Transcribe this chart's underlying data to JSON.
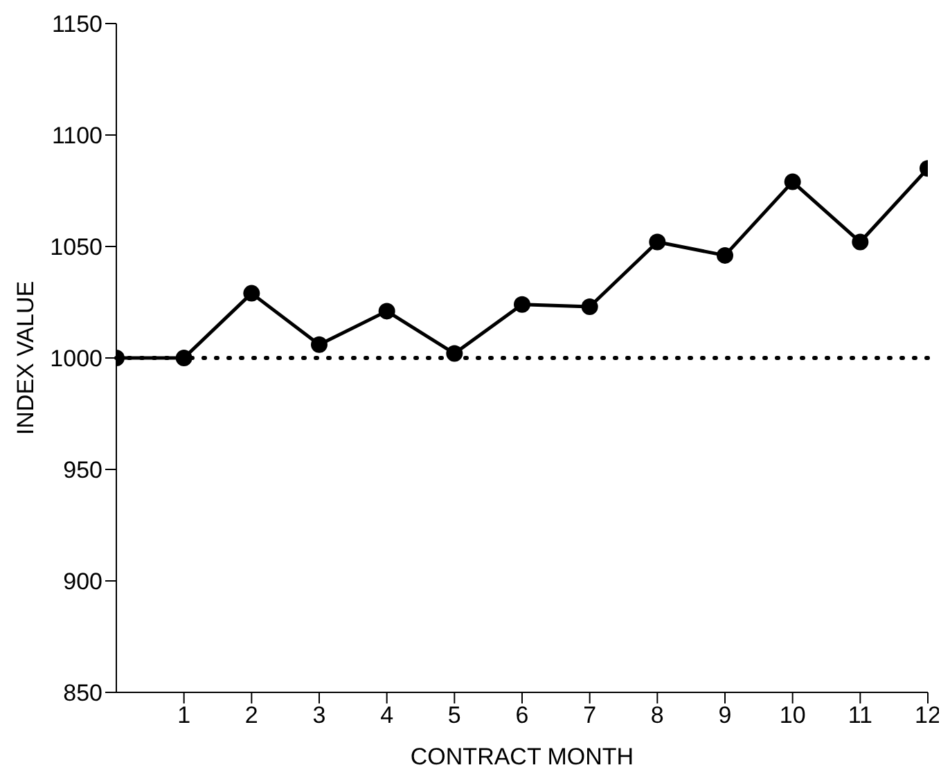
{
  "chart_data": {
    "type": "line",
    "xlabel": "CONTRACT MONTH",
    "ylabel": "INDEX VALUE",
    "x": [
      0,
      1,
      2,
      3,
      4,
      5,
      6,
      7,
      8,
      9,
      10,
      11,
      12
    ],
    "series": [
      {
        "color": "#000000",
        "values": [
          1000,
          1000,
          1029,
          1006,
          1021,
          1002,
          1024,
          1023,
          1052,
          1046,
          1079,
          1052,
          1085
        ]
      }
    ],
    "xlim": [
      0,
      12
    ],
    "xticks": [
      1,
      2,
      3,
      4,
      5,
      6,
      7,
      8,
      9,
      10,
      11,
      12
    ],
    "ylim": [
      850,
      1150
    ],
    "yticks": [
      850,
      900,
      950,
      1000,
      1050,
      1100,
      1150
    ],
    "ref_lines": [
      {
        "axis": "y",
        "value": 1000,
        "line_style": "dotted",
        "color": "#000000"
      }
    ],
    "marker": "circle",
    "line_style": "solid",
    "grid": false,
    "legend": false
  }
}
